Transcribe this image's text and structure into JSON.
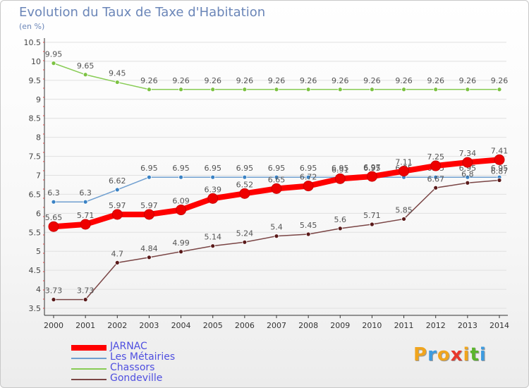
{
  "header": {
    "title": "Evolution du Taux de Taxe d'Habitation",
    "subtitle": "(en %)"
  },
  "logo": {
    "letters": [
      "P",
      "r",
      "o",
      "x",
      "i",
      "t",
      "i"
    ],
    "colors": [
      "#f0a51e",
      "#3d9be0",
      "#f0a51e",
      "#e8372b",
      "#f0a51e",
      "#5ab52c",
      "#3d9be0"
    ]
  },
  "chart_data": {
    "type": "line",
    "title": "Evolution du Taux de Taxe d'Habitation",
    "ylabel": "(en %)",
    "xlabel": "",
    "ylim": [
      3.5,
      10.5
    ],
    "yticks": [
      "3.5",
      "4",
      "4.5",
      "5",
      "5.5",
      "6",
      "6.5",
      "7",
      "7.5",
      "8",
      "8.5",
      "9",
      "9.5",
      "10",
      "10.5"
    ],
    "x": [
      "2000",
      "2001",
      "2002",
      "2003",
      "2004",
      "2005",
      "2006",
      "2007",
      "2008",
      "2009",
      "2010",
      "2011",
      "2012",
      "2013",
      "2014"
    ],
    "grid": "horizontal",
    "legend_position": "bottom-left",
    "series": [
      {
        "name": "Chassors",
        "color": "#88cc55",
        "marker": "#7cc242",
        "width": 1.5,
        "radius": 3,
        "values": [
          9.95,
          9.65,
          9.45,
          9.26,
          9.26,
          9.26,
          9.26,
          9.26,
          9.26,
          9.26,
          9.26,
          9.26,
          9.26,
          9.26,
          9.26
        ],
        "labels": [
          "9.95",
          "9.65",
          "9.45",
          "9.26",
          "9.26",
          "9.26",
          "9.26",
          "9.26",
          "9.26",
          "9.26",
          "9.26",
          "9.26",
          "9.26",
          "9.26",
          "9.26"
        ]
      },
      {
        "name": "Les Métairies",
        "color": "#6f9fd0",
        "marker": "#3a82c4",
        "width": 1.5,
        "radius": 3,
        "values": [
          6.3,
          6.3,
          6.62,
          6.95,
          6.95,
          6.95,
          6.95,
          6.95,
          6.95,
          6.95,
          6.95,
          6.95,
          6.95,
          6.95,
          6.95
        ],
        "labels": [
          "6.3",
          "6.3",
          "6.62",
          "6.95",
          "6.95",
          "6.95",
          "6.95",
          "6.95",
          "6.95",
          "6.95",
          "6.95",
          "6.95",
          "6.95",
          "6.95",
          "6.95"
        ]
      },
      {
        "name": "Gondeville",
        "color": "#7a4545",
        "marker": "#5a1a1a",
        "width": 1.5,
        "radius": 3,
        "values": [
          3.73,
          3.73,
          4.7,
          4.84,
          4.99,
          5.14,
          5.24,
          5.4,
          5.45,
          5.6,
          5.71,
          5.85,
          6.67,
          6.8,
          6.87
        ],
        "labels": [
          "3.73",
          "3.73",
          "4.7",
          "4.84",
          "4.99",
          "5.14",
          "5.24",
          "5.4",
          "5.45",
          "5.6",
          "5.71",
          "5.85",
          "6.67",
          "6.8",
          "6.87"
        ]
      },
      {
        "name": "JARNAC",
        "color": "#ff0000",
        "marker": "#ee0000",
        "width": 8,
        "radius": 7,
        "values": [
          5.65,
          5.71,
          5.97,
          5.97,
          6.09,
          6.39,
          6.52,
          6.65,
          6.72,
          6.91,
          6.97,
          7.11,
          7.25,
          7.34,
          7.41
        ],
        "labels": [
          "5.65",
          "5.71",
          "5.97",
          "5.97",
          "6.09",
          "6.39",
          "6.52",
          "6.65",
          "6.72",
          "6.91",
          "6.97",
          "7.11",
          "7.25",
          "7.34",
          "7.41"
        ]
      }
    ],
    "legend_order": [
      "JARNAC",
      "Les Métairies",
      "Chassors",
      "Gondeville"
    ]
  }
}
